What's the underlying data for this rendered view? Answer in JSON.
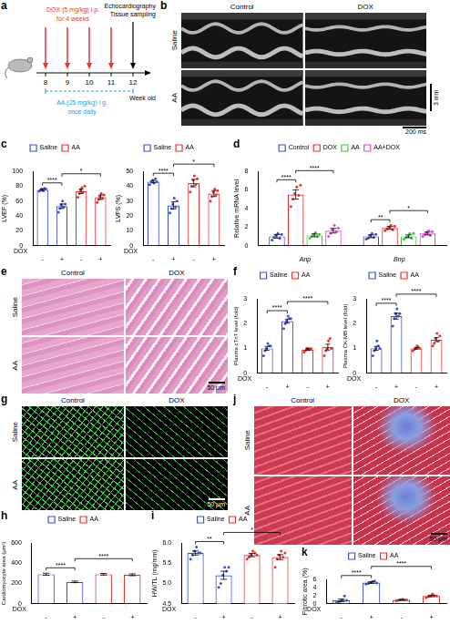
{
  "timeline": {
    "panel": "a",
    "dox": [
      "DOX (5 mg/kg) i.p.",
      "for 4 weeks"
    ],
    "aa": [
      "AA (25 mg/kg) i.g.",
      "once daily"
    ],
    "weeks": [
      8,
      9,
      10,
      11,
      12
    ],
    "week_label": "Week old",
    "endpoint": [
      "Echocardiography",
      "Tissue sampling"
    ]
  },
  "images": [
    {
      "panel": "b",
      "kind": "echo",
      "columns": [
        "Control",
        "DOX"
      ],
      "rows": [
        "Saline",
        "AA"
      ],
      "scale_bars": [
        "3 mm",
        "200 ms"
      ]
    },
    {
      "panel": "e",
      "kind": "he",
      "columns": [
        "Control",
        "DOX"
      ],
      "rows": [
        "Saline",
        "AA"
      ],
      "scale_bars": [
        "50 μm"
      ]
    },
    {
      "panel": "g",
      "kind": "fluorescence",
      "columns": [
        "Control",
        "DOX"
      ],
      "rows": [
        "Saline",
        "AA"
      ],
      "scale_bars": [
        "50 μm"
      ]
    },
    {
      "panel": "j",
      "kind": "masson",
      "columns": [
        "Control",
        "DOX"
      ],
      "rows": [
        "Saline",
        "AA"
      ],
      "scale_bars": [
        "50 μm"
      ]
    }
  ],
  "chart_data": [
    {
      "type": "bar",
      "panel": "c",
      "ylabel": "LVEF (%)",
      "categories": [
        "-",
        "+",
        "-",
        "+"
      ],
      "x_label": "DOX",
      "series": [
        {
          "name": "Saline",
          "color": "#3d4fd8",
          "values": [
            75,
            53,
            null,
            null
          ],
          "errors": [
            1.2,
            3,
            null,
            null
          ],
          "points": [
            [
              73,
              75,
              76,
              74,
              77,
              76
            ],
            [
              45,
              50,
              55,
              60,
              52,
              56
            ],
            null,
            null
          ]
        },
        {
          "name": "AA",
          "color": "#e8322b",
          "values": [
            null,
            null,
            73,
            65
          ],
          "errors": [
            null,
            null,
            3,
            3
          ],
          "points": [
            null,
            null,
            [
              65,
              70,
              75,
              78,
              72,
              80
            ],
            [
              58,
              62,
              66,
              70,
              64,
              68
            ]
          ]
        }
      ],
      "ylim": [
        0,
        100
      ],
      "yticks": [
        0,
        20,
        40,
        60,
        80,
        100
      ],
      "grid": false,
      "legend": "top",
      "significance": [
        {
          "from": 0,
          "to": 1,
          "label": "****"
        },
        {
          "from": 1,
          "to": 3,
          "label": "*"
        }
      ]
    },
    {
      "type": "bar",
      "ylabel": "LVFS (%)",
      "categories": [
        "-",
        "+",
        "-",
        "+"
      ],
      "x_label": "DOX",
      "series": [
        {
          "name": "Saline",
          "color": "#3d4fd8",
          "values": [
            43,
            27,
            null,
            null
          ],
          "errors": [
            0.8,
            2.5,
            null,
            null
          ],
          "points": [
            [
              41,
              43,
              44,
              42,
              45,
              43
            ],
            [
              22,
              25,
              28,
              32,
              26,
              30
            ],
            null,
            null
          ]
        },
        {
          "name": "AA",
          "color": "#e8322b",
          "values": [
            null,
            null,
            42,
            35
          ],
          "errors": [
            null,
            null,
            2.5,
            2
          ],
          "points": [
            null,
            null,
            [
              36,
              40,
              44,
              47,
              41,
              45
            ],
            [
              30,
              33,
              36,
              38,
              34,
              37
            ]
          ]
        }
      ],
      "ylim": [
        0,
        50
      ],
      "yticks": [
        0,
        10,
        20,
        30,
        40,
        50
      ],
      "grid": false,
      "legend": "top",
      "significance": [
        {
          "from": 0,
          "to": 1,
          "label": "****"
        },
        {
          "from": 1,
          "to": 3,
          "label": "*"
        }
      ]
    },
    {
      "type": "bar",
      "panel": "d",
      "ylabel": "Relative mRNA level",
      "categories": [
        "Anp",
        "Bnp"
      ],
      "series": [
        {
          "name": "Control",
          "color": "#3d4fd8",
          "values": [
            1,
            1
          ],
          "errors": [
            0.2,
            0.15
          ],
          "points": [
            [
              0.6,
              0.9,
              1.1,
              1.3,
              0.8,
              1.2
            ],
            [
              0.7,
              0.8,
              1.1,
              1.3,
              0.9,
              1.2
            ]
          ]
        },
        {
          "name": "DOX",
          "color": "#e8322b",
          "values": [
            5.5,
            1.9
          ],
          "errors": [
            0.5,
            0.15
          ],
          "points": [
            [
              4.2,
              5.0,
              5.6,
              6.3,
              5.4,
              6.5
            ],
            [
              1.6,
              1.8,
              2.0,
              2.2,
              1.7,
              2.1
            ]
          ]
        },
        {
          "name": "AA",
          "color": "#3ec63e",
          "values": [
            1.1,
            1
          ],
          "errors": [
            0.15,
            0.15
          ],
          "points": [
            [
              0.8,
              1.0,
              1.2,
              1.4,
              1.0,
              1.2
            ],
            [
              0.7,
              0.9,
              1.0,
              1.3,
              0.8,
              1.3
            ]
          ]
        },
        {
          "name": "AA+DOX",
          "color": "#d946d9",
          "values": [
            1.6,
            1.3
          ],
          "errors": [
            0.25,
            0.15
          ],
          "points": [
            [
              1.0,
              1.3,
              1.7,
              2.2,
              1.5,
              1.9
            ],
            [
              1.0,
              1.2,
              1.4,
              1.6,
              1.1,
              1.5
            ]
          ]
        }
      ],
      "ylim": [
        0,
        8
      ],
      "yticks": [
        0,
        2,
        4,
        6,
        8
      ],
      "grid": false,
      "legend": "top",
      "significance": [
        {
          "category": 0,
          "from": 0,
          "to": 1,
          "label": "****"
        },
        {
          "category": 0,
          "from": 1,
          "to": 3,
          "label": "****"
        },
        {
          "category": 1,
          "from": 0,
          "to": 1,
          "label": "**"
        },
        {
          "category": 1,
          "from": 1,
          "to": 3,
          "label": "*"
        }
      ]
    },
    {
      "type": "bar",
      "panel": "f",
      "ylabel": "Plasma cTnT level (fold)",
      "categories": [
        "-",
        "+",
        "-",
        "+"
      ],
      "x_label": "DOX",
      "series": [
        {
          "name": "Saline",
          "color": "#3d4fd8",
          "values": [
            1,
            2.1,
            null,
            null
          ],
          "errors": [
            0.08,
            0.08,
            null,
            null
          ],
          "points": [
            [
              0.7,
              0.9,
              1.0,
              1.2,
              1.1,
              1.1
            ],
            [
              1.8,
              2.0,
              2.1,
              2.3,
              2.2,
              2.2
            ],
            null,
            null
          ]
        },
        {
          "name": "AA",
          "color": "#e8322b",
          "values": [
            null,
            null,
            0.95,
            1.05
          ],
          "errors": [
            null,
            null,
            0.03,
            0.12
          ],
          "points": [
            null,
            null,
            [
              0.85,
              0.9,
              1.0,
              1.0,
              0.95,
              1.0
            ],
            [
              0.7,
              0.9,
              1.0,
              1.3,
              1.4,
              1.0
            ]
          ]
        }
      ],
      "ylim": [
        0,
        3
      ],
      "yticks": [
        0,
        1,
        2,
        3
      ],
      "grid": false,
      "legend": "top",
      "significance": [
        {
          "from": 0,
          "to": 1,
          "label": "****"
        },
        {
          "from": 1,
          "to": 3,
          "label": "****"
        }
      ]
    },
    {
      "type": "bar",
      "ylabel": "Plasma CK-MB level (fold)",
      "categories": [
        "-",
        "+",
        "-",
        "+"
      ],
      "x_label": "DOX",
      "series": [
        {
          "name": "Saline",
          "color": "#3d4fd8",
          "values": [
            1,
            2.3,
            null,
            null
          ],
          "errors": [
            0.08,
            0.12,
            null,
            null
          ],
          "points": [
            [
              0.7,
              0.9,
              1.0,
              1.3,
              1.1,
              1.0
            ],
            [
              1.9,
              2.2,
              2.4,
              2.6,
              2.3,
              2.4
            ],
            null,
            null
          ]
        },
        {
          "name": "AA",
          "color": "#e8322b",
          "values": [
            null,
            null,
            1,
            1.35
          ],
          "errors": [
            null,
            null,
            0.03,
            0.08
          ],
          "points": [
            null,
            null,
            [
              0.9,
              0.95,
              1.0,
              1.1,
              1.05,
              1.0
            ],
            [
              1.1,
              1.2,
              1.4,
              1.6,
              1.3,
              1.5
            ]
          ]
        }
      ],
      "ylim": [
        0,
        3
      ],
      "yticks": [
        0,
        1,
        2,
        3
      ],
      "grid": false,
      "legend": "top",
      "significance": [
        {
          "from": 0,
          "to": 1,
          "label": "****"
        },
        {
          "from": 1,
          "to": 3,
          "label": "****"
        }
      ]
    },
    {
      "type": "bar",
      "panel": "h",
      "ylabel": "Cardiomyocyte area (μm²)",
      "categories": [
        "-",
        "+",
        "-",
        "+"
      ],
      "x_label": "DOX",
      "series": [
        {
          "name": "Saline",
          "color": "#3d4fd8",
          "values": [
            290,
            215,
            null,
            null
          ],
          "errors": [
            10,
            8,
            null,
            null
          ]
        },
        {
          "name": "AA",
          "color": "#e8322b",
          "values": [
            null,
            null,
            290,
            285
          ],
          "errors": [
            null,
            null,
            8,
            9
          ]
        }
      ],
      "ylim": [
        0,
        600
      ],
      "yticks": [
        0,
        200,
        400,
        600
      ],
      "grid": false,
      "legend": "top",
      "significance": [
        {
          "from": 0,
          "to": 1,
          "label": "****"
        },
        {
          "from": 1,
          "to": 3,
          "label": "****"
        }
      ]
    },
    {
      "type": "bar",
      "panel": "i",
      "ylabel": "HW/TL (mg/mm)",
      "categories": [
        "-",
        "+",
        "-",
        "+"
      ],
      "x_label": "DOX",
      "series": [
        {
          "name": "Saline",
          "color": "#3d4fd8",
          "values": [
            5.75,
            5.2,
            null,
            null
          ],
          "errors": [
            0.05,
            0.1,
            null,
            null
          ],
          "points": [
            [
              5.6,
              5.7,
              5.8,
              5.9,
              5.75,
              5.75
            ],
            [
              4.9,
              5.0,
              5.2,
              5.4,
              5.3,
              5.4
            ],
            null,
            null
          ]
        },
        {
          "name": "AA",
          "color": "#e8322b",
          "values": [
            null,
            null,
            5.7,
            5.65
          ],
          "errors": [
            null,
            null,
            0.04,
            0.06
          ],
          "points": [
            null,
            null,
            [
              5.6,
              5.65,
              5.7,
              5.8,
              5.75,
              5.7
            ],
            [
              5.4,
              5.6,
              5.7,
              5.8,
              5.65,
              5.75
            ]
          ]
        }
      ],
      "ylim": [
        4.5,
        6
      ],
      "yticks": [
        4.5,
        {
          "value": 5,
          "label": "5.0"
        },
        5.5,
        {
          "value": 6,
          "label": "6.0"
        }
      ],
      "grid": false,
      "legend": "top",
      "significance": [
        {
          "from": 0,
          "to": 1,
          "label": "**"
        },
        {
          "from": 1,
          "to": 3,
          "label": "*"
        }
      ]
    },
    {
      "type": "bar",
      "panel": "k",
      "ylabel": "Fibrotic area (%)",
      "categories": [
        "-",
        "+",
        "-",
        "+"
      ],
      "x_label": "DOX",
      "series": [
        {
          "name": "Saline",
          "color": "#3d4fd8",
          "values": [
            0.8,
            5.2,
            null,
            null
          ],
          "errors": [
            0.3,
            0.18,
            null,
            null
          ],
          "points": [
            [
              0.2,
              0.4,
              0.6,
              0.9,
              1.9,
              0.8
            ],
            [
              4.8,
              5.0,
              5.2,
              5.5,
              5.6,
              5.1
            ],
            null,
            null
          ]
        },
        {
          "name": "AA",
          "color": "#e8322b",
          "values": [
            null,
            null,
            0.9,
            1.9
          ],
          "errors": [
            null,
            null,
            0.06,
            0.18
          ],
          "points": [
            null,
            null,
            [
              0.7,
              0.8,
              1.0,
              1.1,
              0.9,
              0.9
            ],
            [
              1.5,
              1.7,
              1.9,
              2.4,
              2.0,
              1.9
            ]
          ]
        }
      ],
      "ylim": [
        0,
        6
      ],
      "yticks": [
        0,
        2,
        4,
        6
      ],
      "grid": false,
      "legend": "top",
      "significance": [
        {
          "from": 0,
          "to": 1,
          "label": "****"
        },
        {
          "from": 1,
          "to": 3,
          "label": "****"
        }
      ]
    }
  ]
}
